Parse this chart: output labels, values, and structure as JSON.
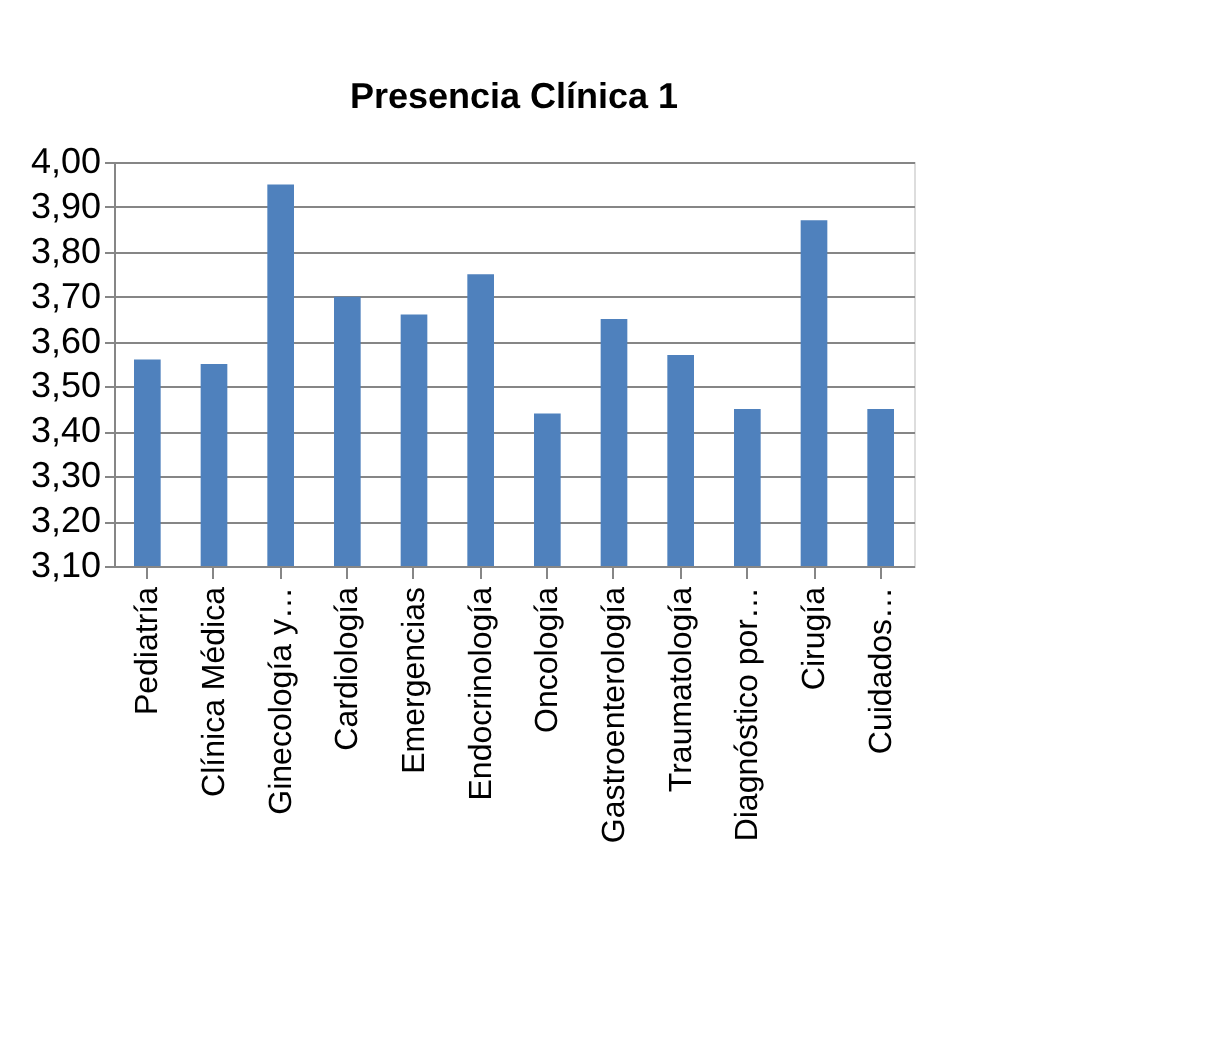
{
  "chart_data": {
    "type": "bar",
    "title": "Presencia Clínica 1",
    "categories": [
      "Pediatría",
      "Clínica Médica",
      "Ginecología y…",
      "Cardiología",
      "Emergencias",
      "Endocrinología",
      "Oncología",
      "Gastroenterología",
      "Traumatología",
      "Diagnóstico por…",
      "Cirugía",
      "Cuidados…"
    ],
    "values": [
      3.56,
      3.55,
      3.95,
      3.7,
      3.66,
      3.75,
      3.44,
      3.65,
      3.57,
      3.45,
      3.87,
      3.45
    ],
    "color": "#4f81bd",
    "ylim": [
      3.1,
      4.0
    ],
    "yticks": [
      {
        "value": 3.1,
        "label": "3,10"
      },
      {
        "value": 3.2,
        "label": "3,20"
      },
      {
        "value": 3.3,
        "label": "3,30"
      },
      {
        "value": 3.4,
        "label": "3,40"
      },
      {
        "value": 3.5,
        "label": "3,50"
      },
      {
        "value": 3.6,
        "label": "3,60"
      },
      {
        "value": 3.7,
        "label": "3,70"
      },
      {
        "value": 3.8,
        "label": "3,80"
      },
      {
        "value": 3.9,
        "label": "3,90"
      },
      {
        "value": 4.0,
        "label": "4,00"
      }
    ],
    "grid": "y"
  }
}
